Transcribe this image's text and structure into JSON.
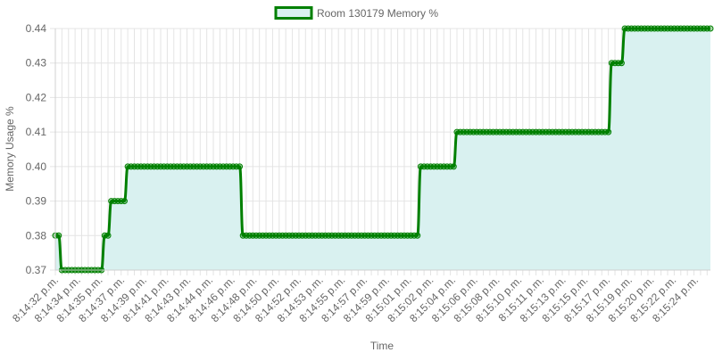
{
  "chart_data": {
    "type": "area",
    "legend": {
      "label": "Room 130179 Memory %",
      "position": "top"
    },
    "xlabel": "Time",
    "ylabel": "Memory Usage %",
    "ylim": [
      0.37,
      0.44
    ],
    "yticks": [
      "0.37",
      "0.38",
      "0.39",
      "0.40",
      "0.41",
      "0.42",
      "0.43",
      "0.44"
    ],
    "grid": true,
    "colors": {
      "line": "#008000",
      "fill": "#d9f1f0",
      "grid": "#e4e4e4",
      "text": "#666666"
    },
    "xtick_labels": [
      "8:14:32 p.m.",
      "8:14:34 p.m.",
      "8:14:35 p.m.",
      "8:14:37 p.m.",
      "8:14:39 p.m.",
      "8:14:41 p.m.",
      "8:14:43 p.m.",
      "8:14:44 p.m.",
      "8:14:46 p.m.",
      "8:14:48 p.m.",
      "8:14:50 p.m.",
      "8:14:52 p.m.",
      "8:14:53 p.m.",
      "8:14:55 p.m.",
      "8:14:57 p.m.",
      "8:14:59 p.m.",
      "8:15:01 p.m.",
      "8:15:02 p.m.",
      "8:15:04 p.m.",
      "8:15:06 p.m.",
      "8:15:08 p.m.",
      "8:15:10 p.m.",
      "8:15:11 p.m.",
      "8:15:13 p.m.",
      "8:15:15 p.m.",
      "8:15:17 p.m.",
      "8:15:19 p.m.",
      "8:15:20 p.m.",
      "8:15:22 p.m.",
      "8:15:24 p.m."
    ],
    "series": [
      {
        "name": "Room 130179 Memory %",
        "runs": [
          {
            "value": 0.38,
            "count": 2
          },
          {
            "value": 0.37,
            "count": 13
          },
          {
            "value": 0.38,
            "count": 2
          },
          {
            "value": 0.39,
            "count": 5
          },
          {
            "value": 0.4,
            "count": 35
          },
          {
            "value": 0.38,
            "count": 54
          },
          {
            "value": 0.4,
            "count": 11
          },
          {
            "value": 0.41,
            "count": 47
          },
          {
            "value": 0.43,
            "count": 4
          },
          {
            "value": 0.44,
            "count": 27
          }
        ]
      }
    ]
  }
}
